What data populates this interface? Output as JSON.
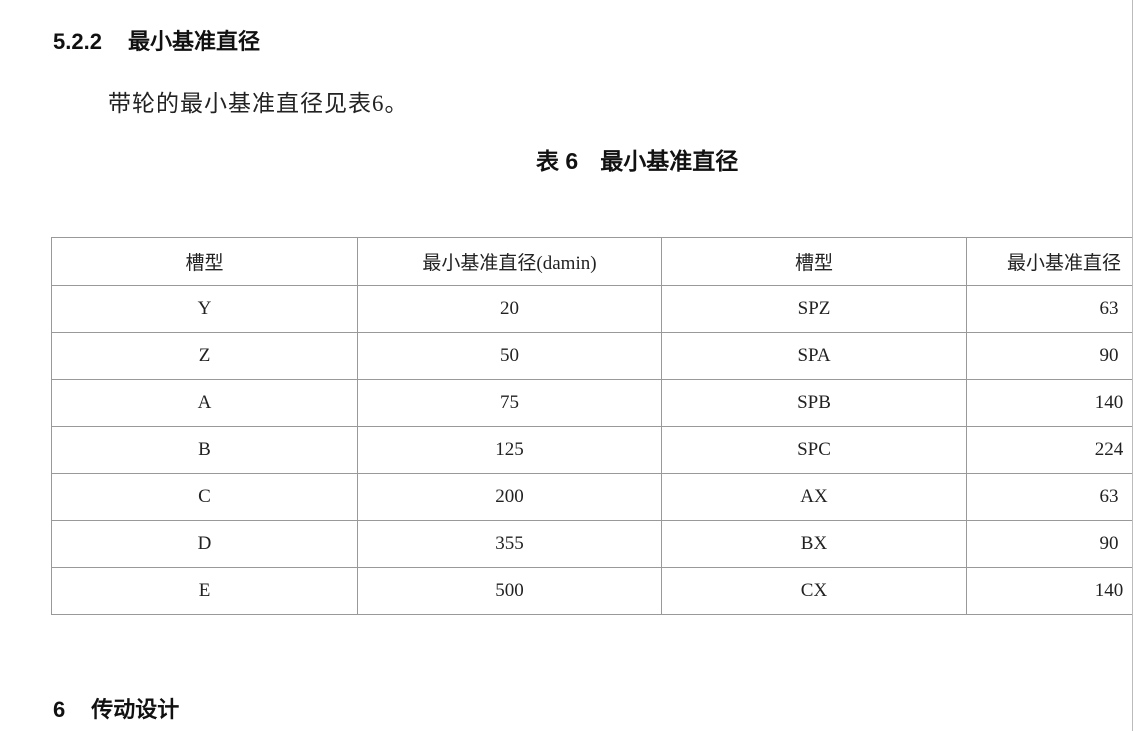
{
  "section_heading": {
    "number": "5.2.2",
    "title": "最小基准直径"
  },
  "paragraph": "带轮的最小基准直径见表6。",
  "table_caption": {
    "label": "表 6",
    "title": "最小基准直径"
  },
  "table": {
    "headers": [
      "槽型",
      "最小基准直径(damin)",
      "槽型",
      "最小基准直径"
    ],
    "rows": [
      [
        "Y",
        "20",
        "SPZ",
        "63"
      ],
      [
        "Z",
        "50",
        "SPA",
        "90"
      ],
      [
        "A",
        "75",
        "SPB",
        "140"
      ],
      [
        "B",
        "125",
        "SPC",
        "224"
      ],
      [
        "C",
        "200",
        "AX",
        "63"
      ],
      [
        "D",
        "355",
        "BX",
        "90"
      ],
      [
        "E",
        "500",
        "CX",
        "140"
      ]
    ]
  },
  "next_heading": {
    "number": "6",
    "title": "传动设计"
  }
}
